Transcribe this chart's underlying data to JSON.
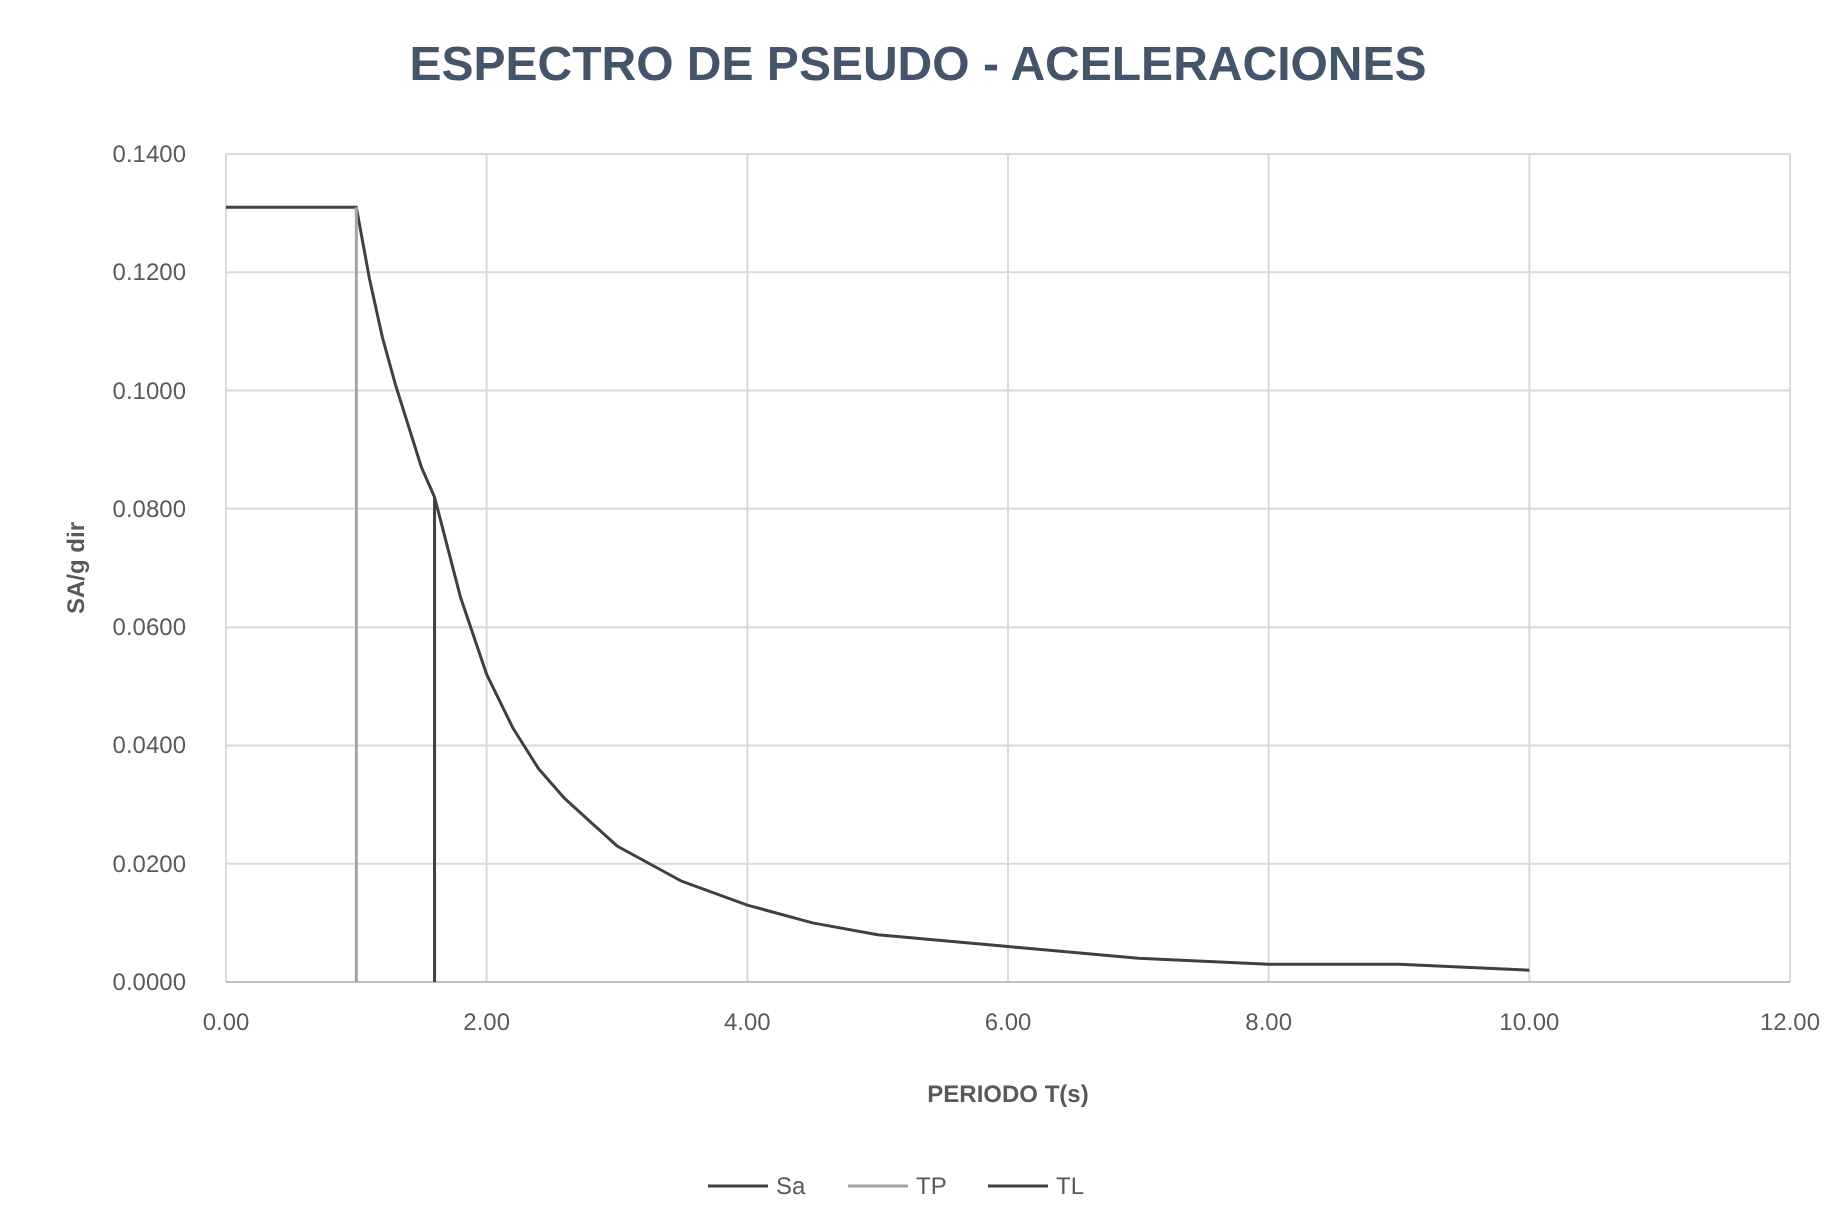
{
  "chart_data": {
    "type": "line",
    "title": "ESPECTRO DE PSEUDO - ACELERACIONES",
    "xlabel": "PERIODO T(s)",
    "ylabel": "SA/g dir",
    "xlim": [
      0,
      12
    ],
    "ylim": [
      0,
      0.14
    ],
    "xticks": [
      {
        "value": 0,
        "label": "0.00"
      },
      {
        "value": 2,
        "label": "2.00"
      },
      {
        "value": 4,
        "label": "4.00"
      },
      {
        "value": 6,
        "label": "6.00"
      },
      {
        "value": 8,
        "label": "8.00"
      },
      {
        "value": 10,
        "label": "10.00"
      },
      {
        "value": 12,
        "label": "12.00"
      }
    ],
    "yticks": [
      {
        "value": 0,
        "label": "0.0000"
      },
      {
        "value": 0.02,
        "label": "0.0200"
      },
      {
        "value": 0.04,
        "label": "0.0400"
      },
      {
        "value": 0.06,
        "label": "0.0600"
      },
      {
        "value": 0.08,
        "label": "0.0800"
      },
      {
        "value": 0.1,
        "label": "0.1000"
      },
      {
        "value": 0.12,
        "label": "0.1200"
      },
      {
        "value": 0.14,
        "label": "0.1400"
      }
    ],
    "grid": true,
    "legend": "bottom",
    "marker": "none",
    "line_style": "solid",
    "series": [
      {
        "name": "Sa",
        "color": "#404040",
        "x": [
          0,
          1,
          1.1,
          1.2,
          1.3,
          1.4,
          1.5,
          1.6,
          1.8,
          2,
          2.2,
          2.4,
          2.6,
          2.8,
          3,
          3.5,
          4,
          4.5,
          5,
          6,
          7,
          8,
          9,
          10
        ],
        "values": [
          0.131,
          0.131,
          0.119,
          0.109,
          0.101,
          0.094,
          0.087,
          0.082,
          0.065,
          0.052,
          0.043,
          0.036,
          0.031,
          0.027,
          0.023,
          0.017,
          0.013,
          0.01,
          0.008,
          0.006,
          0.004,
          0.003,
          0.003,
          0.002
        ]
      },
      {
        "name": "TP",
        "color": "#a5a5a5",
        "x": [
          1,
          1
        ],
        "values": [
          0,
          0.131
        ]
      },
      {
        "name": "TL",
        "color": "#404040",
        "x": [
          1.6,
          1.6
        ],
        "values": [
          0,
          0.082
        ]
      }
    ]
  }
}
